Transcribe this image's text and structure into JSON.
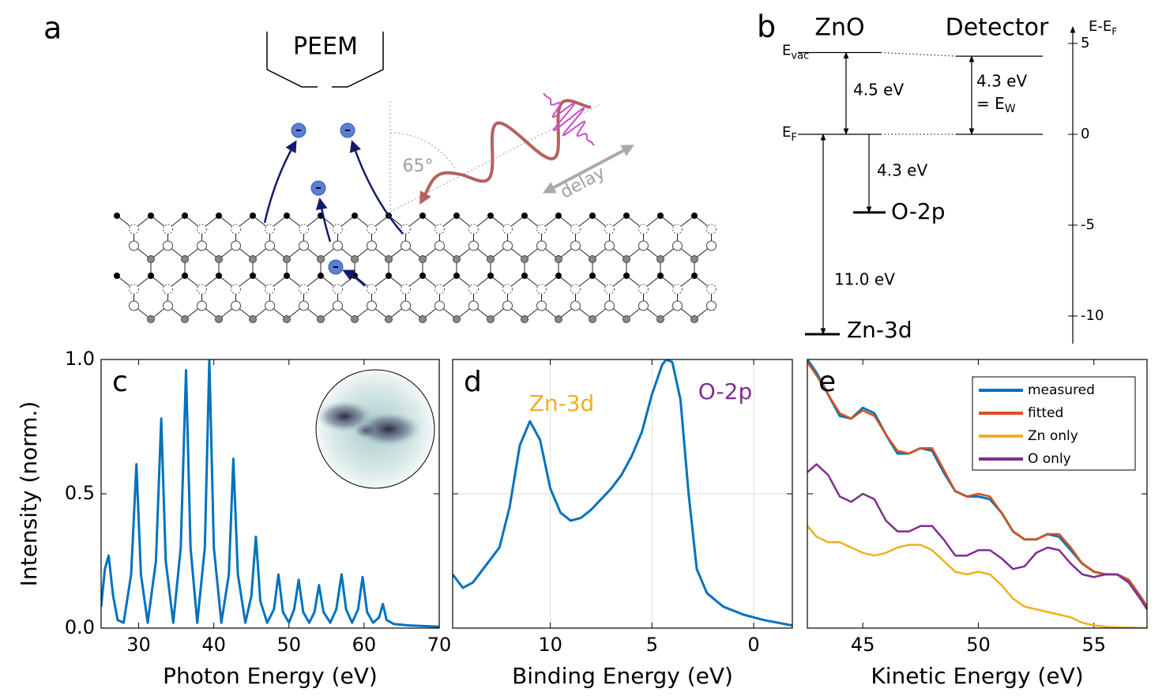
{
  "panel_a": {
    "letter": "a",
    "instrument": "PEEM",
    "angle": "65°",
    "delay": "delay"
  },
  "chart_data": [
    {
      "type": "energy-levels",
      "panel": "b",
      "columns": [
        "ZnO",
        "Detector"
      ],
      "axis_label": {
        "text": "E-E",
        "subscript": "F"
      },
      "ylim": [
        -11.5,
        6.1
      ],
      "yticks": [
        5,
        0,
        -5,
        -10
      ],
      "levels": {
        "zno_vac": {
          "value": 4.5,
          "label": {
            "text": "E",
            "subscript": "vac"
          }
        },
        "fermi": {
          "value": 0,
          "label": {
            "text": "E",
            "subscript": "F"
          }
        },
        "det_vac": {
          "value": 4.3
        },
        "o2p": {
          "value": -4.3,
          "label": "O-2p"
        },
        "zn3d": {
          "value": -11.0,
          "label": "Zn-3d"
        }
      },
      "gap_labels": {
        "zno_work": "4.5 eV",
        "det_work": "4.3 eV",
        "det_work_eq": {
          "text": "= E",
          "subscript": "W"
        },
        "o2p": "4.3 eV",
        "zn3d": "11.0 eV"
      }
    },
    {
      "type": "line",
      "panel": "c",
      "xlabel": "Photon Energy (eV)",
      "ylabel": "Intensity (norm.)",
      "xlim": [
        25,
        70
      ],
      "ylim": [
        0,
        1
      ],
      "xticks": [
        30,
        40,
        50,
        60,
        70
      ],
      "yticks": [
        {
          "value": 0,
          "label": "0.0"
        },
        0.5,
        {
          "value": 1,
          "label": "1.0"
        }
      ],
      "ytick_labels": true,
      "grid": false,
      "x": [
        25.0,
        25.5,
        26.0,
        26.6,
        27.2,
        28.0,
        29.0,
        29.7,
        30.3,
        31.2,
        32.3,
        33.0,
        33.6,
        34.6,
        35.6,
        36.3,
        36.9,
        37.8,
        38.8,
        39.4,
        40.0,
        41.0,
        42.0,
        42.6,
        43.2,
        44.2,
        45.0,
        45.6,
        46.2,
        47.1,
        48.0,
        48.6,
        49.2,
        50.0,
        50.7,
        51.3,
        51.9,
        52.7,
        53.4,
        54.0,
        54.6,
        55.5,
        56.3,
        57.0,
        57.6,
        58.4,
        59.2,
        59.8,
        60.4,
        61.2,
        62.0,
        62.5,
        63.0,
        64.0,
        66.0,
        70.0
      ],
      "series": [
        {
          "color": "#0072bd",
          "values": [
            0.08,
            0.22,
            0.27,
            0.12,
            0.03,
            0.02,
            0.2,
            0.61,
            0.2,
            0.02,
            0.25,
            0.78,
            0.25,
            0.02,
            0.3,
            0.96,
            0.3,
            0.02,
            0.3,
            1.0,
            0.3,
            0.02,
            0.2,
            0.63,
            0.2,
            0.02,
            0.12,
            0.34,
            0.1,
            0.02,
            0.07,
            0.2,
            0.06,
            0.02,
            0.07,
            0.18,
            0.06,
            0.02,
            0.06,
            0.16,
            0.06,
            0.02,
            0.07,
            0.2,
            0.07,
            0.02,
            0.07,
            0.19,
            0.06,
            0.02,
            0.04,
            0.09,
            0.03,
            0.015,
            0.01,
            0.005
          ]
        }
      ]
    },
    {
      "type": "line",
      "panel": "d",
      "xlabel": "Binding Energy (eV)",
      "xlim": [
        14.8,
        -1.9
      ],
      "ylim": [
        0,
        1
      ],
      "xticks": [
        10,
        5,
        0
      ],
      "yticks": [
        0,
        0.5,
        1
      ],
      "ytick_labels": false,
      "grid": true,
      "annotations": [
        {
          "text": "Zn-3d",
          "color": "#edb120"
        },
        {
          "text": "O-2p",
          "color": "#7e2f8e"
        }
      ],
      "x": [
        14.8,
        14.3,
        13.8,
        13.3,
        12.5,
        12.0,
        11.5,
        11.0,
        10.5,
        10.0,
        9.5,
        9.0,
        8.5,
        8.0,
        7.5,
        7.0,
        6.5,
        6.0,
        5.5,
        5.0,
        4.5,
        4.3,
        4.0,
        3.6,
        3.2,
        2.8,
        2.3,
        1.5,
        0.5,
        -0.5,
        -1.9
      ],
      "series": [
        {
          "color": "#0072bd",
          "values": [
            0.2,
            0.15,
            0.17,
            0.22,
            0.3,
            0.45,
            0.68,
            0.77,
            0.7,
            0.52,
            0.43,
            0.4,
            0.41,
            0.44,
            0.48,
            0.52,
            0.57,
            0.64,
            0.73,
            0.87,
            0.98,
            1.0,
            0.99,
            0.85,
            0.5,
            0.22,
            0.13,
            0.08,
            0.05,
            0.03,
            0.01
          ]
        }
      ]
    },
    {
      "type": "line",
      "panel": "e",
      "xlabel": "Kinetic Energy (eV)",
      "xlim": [
        42.6,
        57.3
      ],
      "ylim": [
        0,
        1
      ],
      "xticks": [
        45,
        50,
        55
      ],
      "yticks": [
        0,
        0.5,
        1
      ],
      "ytick_labels": false,
      "grid": false,
      "legend": "top-right",
      "x": [
        42.6,
        43.0,
        43.5,
        44.0,
        44.5,
        45.0,
        45.5,
        46.0,
        46.5,
        47.0,
        47.5,
        48.0,
        48.5,
        49.0,
        49.5,
        50.0,
        50.5,
        51.0,
        51.5,
        52.0,
        52.5,
        53.0,
        53.5,
        54.0,
        54.5,
        55.0,
        55.5,
        56.0,
        56.5,
        57.0,
        57.3
      ],
      "series": [
        {
          "name": "measured",
          "color": "#0072bd",
          "values": [
            1.0,
            0.95,
            0.87,
            0.79,
            0.78,
            0.82,
            0.8,
            0.72,
            0.65,
            0.65,
            0.67,
            0.66,
            0.58,
            0.51,
            0.49,
            0.49,
            0.48,
            0.43,
            0.36,
            0.33,
            0.33,
            0.35,
            0.34,
            0.29,
            0.24,
            0.21,
            0.2,
            0.2,
            0.18,
            0.12,
            0.08
          ]
        },
        {
          "name": "fitted",
          "color": "#d95319",
          "values": [
            0.99,
            0.94,
            0.87,
            0.8,
            0.78,
            0.81,
            0.79,
            0.72,
            0.66,
            0.65,
            0.67,
            0.67,
            0.59,
            0.51,
            0.49,
            0.5,
            0.49,
            0.43,
            0.36,
            0.33,
            0.33,
            0.35,
            0.35,
            0.3,
            0.24,
            0.21,
            0.2,
            0.2,
            0.18,
            0.12,
            0.08
          ]
        },
        {
          "name": "Zn only",
          "color": "#edb120",
          "values": [
            0.38,
            0.34,
            0.32,
            0.32,
            0.3,
            0.28,
            0.27,
            0.28,
            0.3,
            0.31,
            0.31,
            0.29,
            0.25,
            0.21,
            0.2,
            0.21,
            0.2,
            0.16,
            0.11,
            0.08,
            0.07,
            0.06,
            0.05,
            0.04,
            0.02,
            0.01,
            0.005,
            0.003,
            0.002,
            0.001,
            0.001
          ]
        },
        {
          "name": "O only",
          "color": "#7e2f8e",
          "values": [
            0.58,
            0.61,
            0.57,
            0.49,
            0.47,
            0.5,
            0.48,
            0.4,
            0.36,
            0.36,
            0.38,
            0.38,
            0.33,
            0.27,
            0.27,
            0.29,
            0.29,
            0.26,
            0.22,
            0.23,
            0.28,
            0.3,
            0.29,
            0.24,
            0.2,
            0.19,
            0.2,
            0.2,
            0.17,
            0.11,
            0.07
          ]
        }
      ]
    }
  ]
}
